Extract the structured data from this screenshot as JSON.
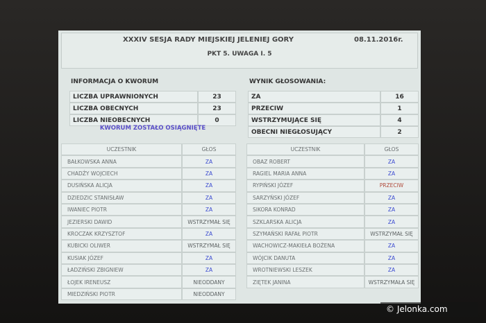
{
  "header": {
    "title": "XXXIV SESJA RADY MIEJSKIEJ JELENIEJ GÓRY",
    "date": "08.11.2016r.",
    "subtitle": "PKT 5. UWAGA I. 5"
  },
  "quorum": {
    "title": "INFORMACJA O KWORUM",
    "rows": [
      [
        "LICZBA UPRAWNIONYCH",
        "23"
      ],
      [
        "LICZBA OBECNYCH",
        "23"
      ],
      [
        "LICZBA NIEOBECNYCH",
        "0"
      ]
    ],
    "status": "KWORUM ZOSTAŁO OSIĄGNIĘTE"
  },
  "result": {
    "title": "WYNIK GŁOSOWANIA:",
    "rows": [
      [
        "ZA",
        "16"
      ],
      [
        "PRZECIW",
        "1"
      ],
      [
        "WSTRZYMUJĄCE SIĘ",
        "4"
      ],
      [
        "OBECNI NIEGŁOSUJĄCY",
        "2"
      ]
    ]
  },
  "tables": [
    {
      "headers": [
        "UCZESTNIK",
        "GŁOS"
      ],
      "rows": [
        [
          "BAŁKOWSKA ANNA",
          "ZA"
        ],
        [
          "CHADŹY WOJCIECH",
          "ZA"
        ],
        [
          "DUSIŃSKA ALICJA",
          "ZA"
        ],
        [
          "DZIEDZIC STANISŁAW",
          "ZA"
        ],
        [
          "IWANIEC PIOTR",
          "ZA"
        ],
        [
          "JEZIERSKI DAWID",
          "WSTRZYMAŁ SIĘ"
        ],
        [
          "KROCZAK KRZYSZTOF",
          "ZA"
        ],
        [
          "KUBICKI OLIWER",
          "WSTRZYMAŁ SIĘ"
        ],
        [
          "KUSIAK JÓZEF",
          "ZA"
        ],
        [
          "ŁADZIŃSKI ZBIGNIEW",
          "ZA"
        ],
        [
          "ŁOJEK IRENEUSZ",
          "NIEODDANY"
        ],
        [
          "MIEDZIŃSKI PIOTR",
          "NIEODDANY"
        ]
      ]
    },
    {
      "headers": [
        "UCZESTNIK",
        "GŁOS"
      ],
      "rows": [
        [
          "OBAZ ROBERT",
          "ZA"
        ],
        [
          "RAGIEL MARIA ANNA",
          "ZA"
        ],
        [
          "RYPIŃSKI JÓZEF",
          "PRZECIW"
        ],
        [
          "SARZYŃSKI JÓZEF",
          "ZA"
        ],
        [
          "SIKORA KONRAD",
          "ZA"
        ],
        [
          "SZKLARSKA ALICJA",
          "ZA"
        ],
        [
          "SZYMAŃSKI RAFAŁ PIOTR",
          "WSTRZYMAŁ SIĘ"
        ],
        [
          "WACHOWICZ-MAKIEŁA BOŻENA",
          "ZA"
        ],
        [
          "WÓJCIK DANUTA",
          "ZA"
        ],
        [
          "WROTNIEWSKI LESZEK",
          "ZA"
        ],
        [
          "ZIĘTEK JANINA",
          "WSTRZYMAŁA SIĘ"
        ]
      ]
    }
  ],
  "watermark": "© Jelonka.com"
}
